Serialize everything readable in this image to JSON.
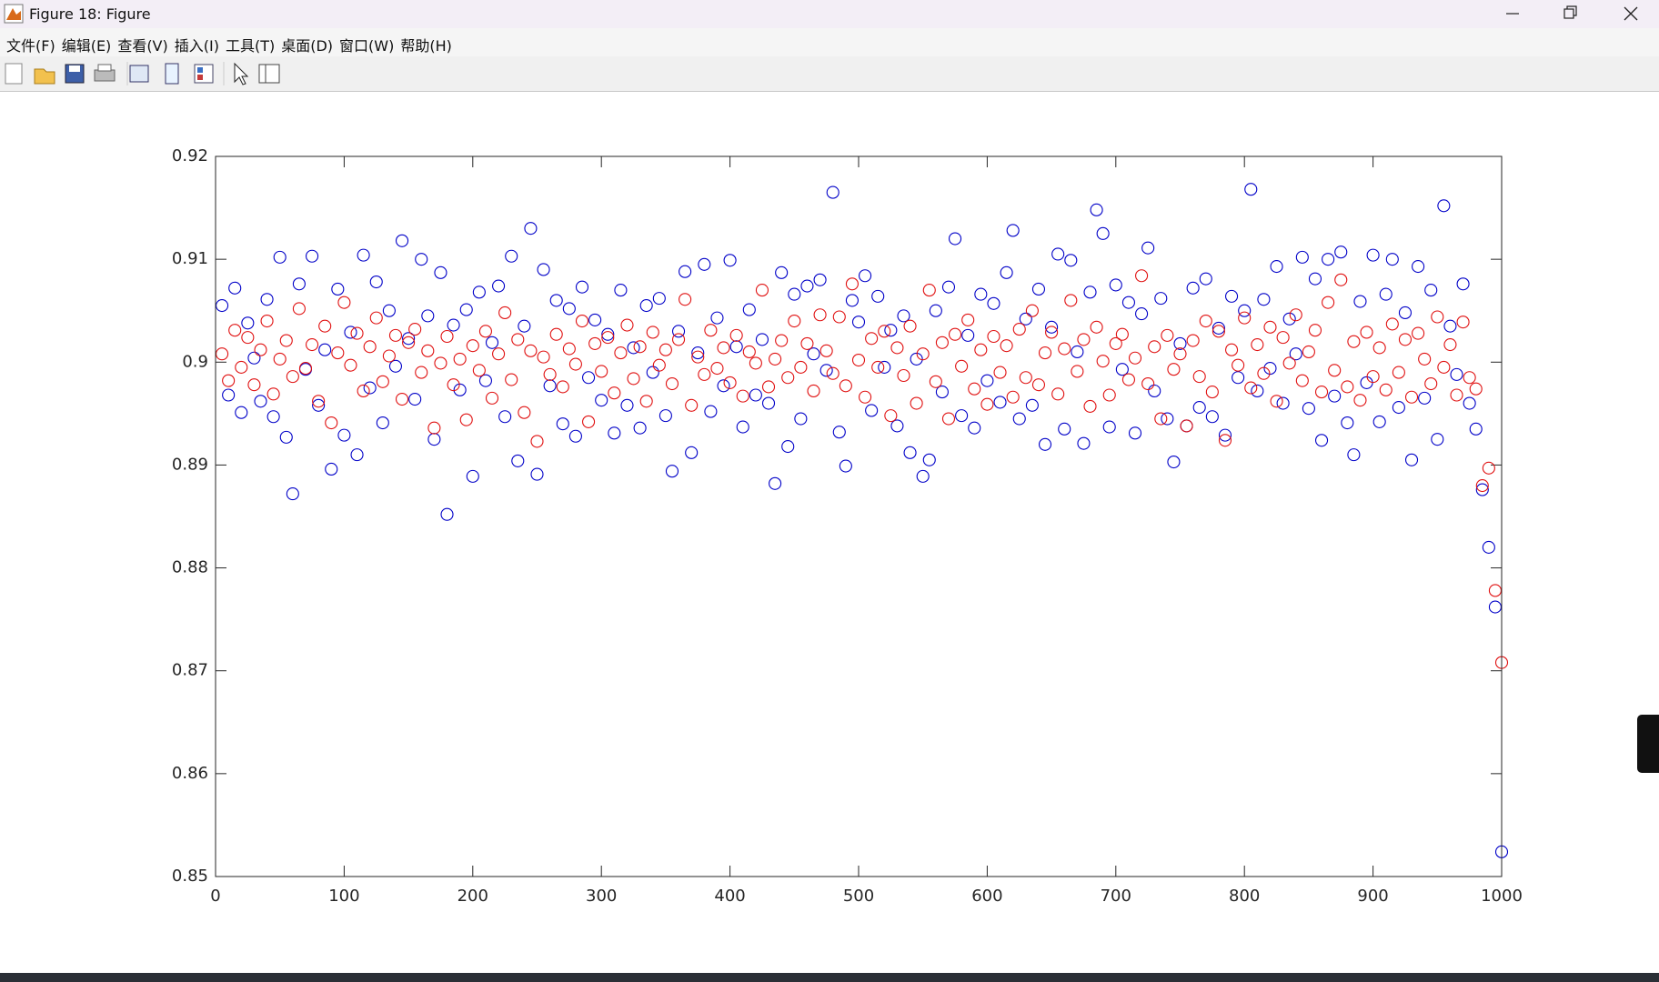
{
  "window": {
    "title": "Figure 18: Figure",
    "menu": [
      "文件(F)",
      "编辑(E)",
      "查看(V)",
      "插入(I)",
      "工具(T)",
      "桌面(D)",
      "窗口(W)",
      "帮助(H)"
    ]
  },
  "chart_data": {
    "type": "scatter",
    "x": [
      5,
      10,
      15,
      20,
      25,
      30,
      35,
      40,
      45,
      50,
      55,
      60,
      65,
      70,
      75,
      80,
      85,
      90,
      95,
      100,
      105,
      110,
      115,
      120,
      125,
      130,
      135,
      140,
      145,
      150,
      155,
      160,
      165,
      170,
      175,
      180,
      185,
      190,
      195,
      200,
      205,
      210,
      215,
      220,
      225,
      230,
      235,
      240,
      245,
      250,
      255,
      260,
      265,
      270,
      275,
      280,
      285,
      290,
      295,
      300,
      305,
      310,
      315,
      320,
      325,
      330,
      335,
      340,
      345,
      350,
      355,
      360,
      365,
      370,
      375,
      380,
      385,
      390,
      395,
      400,
      405,
      410,
      415,
      420,
      425,
      430,
      435,
      440,
      445,
      450,
      455,
      460,
      465,
      470,
      475,
      480,
      485,
      490,
      495,
      500,
      505,
      510,
      515,
      520,
      525,
      530,
      535,
      540,
      545,
      550,
      555,
      560,
      565,
      570,
      575,
      580,
      585,
      590,
      595,
      600,
      605,
      610,
      615,
      620,
      625,
      630,
      635,
      640,
      645,
      650,
      655,
      660,
      665,
      670,
      675,
      680,
      685,
      690,
      695,
      700,
      705,
      710,
      715,
      720,
      725,
      730,
      735,
      740,
      745,
      750,
      755,
      760,
      765,
      770,
      775,
      780,
      785,
      790,
      795,
      800,
      805,
      810,
      815,
      820,
      825,
      830,
      835,
      840,
      845,
      850,
      855,
      860,
      865,
      870,
      875,
      880,
      885,
      890,
      895,
      900,
      905,
      910,
      915,
      920,
      925,
      930,
      935,
      940,
      945,
      950,
      955,
      960,
      965,
      970,
      975,
      980,
      985,
      990,
      995,
      1000
    ],
    "series": [
      {
        "color": "#0000c8",
        "values": [
          0.9055,
          0.8968,
          0.9072,
          0.8951,
          0.9038,
          0.9004,
          0.8962,
          0.9061,
          0.8947,
          0.9102,
          0.8927,
          0.8872,
          0.9076,
          0.8993,
          0.9103,
          0.8958,
          0.9012,
          0.8896,
          0.9071,
          0.8929,
          0.9029,
          0.891,
          0.9104,
          0.8975,
          0.9078,
          0.8941,
          0.905,
          0.8996,
          0.9118,
          0.9023,
          0.8964,
          0.91,
          0.9045,
          0.8925,
          0.9087,
          0.8852,
          0.9036,
          0.8973,
          0.9051,
          0.8889,
          0.9068,
          0.8982,
          0.9019,
          0.9074,
          0.8947,
          0.9103,
          0.8904,
          0.9035,
          0.913,
          0.8891,
          0.909,
          0.8977,
          0.906,
          0.894,
          0.9052,
          0.8928,
          0.9073,
          0.8985,
          0.9041,
          0.8963,
          0.9027,
          0.8931,
          0.907,
          0.8958,
          0.9014,
          0.8936,
          0.9055,
          0.899,
          0.9062,
          0.8948,
          0.8894,
          0.903,
          0.9088,
          0.8912,
          0.9009,
          0.9095,
          0.8952,
          0.9043,
          0.8977,
          0.9099,
          0.9015,
          0.8937,
          0.9051,
          0.8968,
          0.9022,
          0.896,
          0.8882,
          0.9087,
          0.8918,
          0.9066,
          0.8945,
          0.9074,
          0.9008,
          0.908,
          0.8992,
          0.9165,
          0.8932,
          0.8899,
          0.906,
          0.9039,
          0.9084,
          0.8953,
          0.9064,
          0.8995,
          0.9031,
          0.8938,
          0.9045,
          0.8912,
          0.9003,
          0.8889,
          0.8905,
          0.905,
          0.8971,
          0.9073,
          0.912,
          0.8948,
          0.9026,
          0.8936,
          0.9066,
          0.8982,
          0.9057,
          0.8961,
          0.9087,
          0.9128,
          0.8945,
          0.9042,
          0.8958,
          0.9071,
          0.892,
          0.9034,
          0.9105,
          0.8935,
          0.9099,
          0.901,
          0.8921,
          0.9068,
          0.9148,
          0.9125,
          0.8937,
          0.9075,
          0.8993,
          0.9058,
          0.8931,
          0.9047,
          0.9111,
          0.8972,
          0.9062,
          0.8945,
          0.8903,
          0.9018,
          0.8938,
          0.9072,
          0.8956,
          0.9081,
          0.8947,
          0.9033,
          0.8929,
          0.9064,
          0.8985,
          0.905,
          0.9168,
          0.8972,
          0.9061,
          0.8994,
          0.9093,
          0.896,
          0.9042,
          0.9008,
          0.9102,
          0.8955,
          0.9081,
          0.8924,
          0.91,
          0.8967,
          0.9107,
          0.8941,
          0.891,
          0.9059,
          0.898,
          0.9104,
          0.8942,
          0.9066,
          0.91,
          0.8956,
          0.9048,
          0.8905,
          0.9093,
          0.8965,
          0.907,
          0.8925,
          0.9152,
          0.9035,
          0.8988,
          0.9076,
          0.896,
          0.8935,
          0.8876,
          0.882,
          0.8762,
          0.8524
        ]
      },
      {
        "color": "#e01010",
        "values": [
          0.9008,
          0.8982,
          0.9031,
          0.8995,
          0.9024,
          0.8978,
          0.9012,
          0.904,
          0.8969,
          0.9003,
          0.9021,
          0.8986,
          0.9052,
          0.8994,
          0.9017,
          0.8962,
          0.9035,
          0.8941,
          0.9009,
          0.9058,
          0.8997,
          0.9028,
          0.8972,
          0.9015,
          0.9043,
          0.8981,
          0.9006,
          0.9026,
          0.8964,
          0.9019,
          0.9032,
          0.899,
          0.9011,
          0.8936,
          0.8999,
          0.9025,
          0.8978,
          0.9003,
          0.8944,
          0.9016,
          0.8992,
          0.903,
          0.8965,
          0.9008,
          0.9048,
          0.8983,
          0.9022,
          0.8951,
          0.9011,
          0.8923,
          0.9005,
          0.8988,
          0.9027,
          0.8976,
          0.9013,
          0.8998,
          0.904,
          0.8942,
          0.9018,
          0.8991,
          0.9024,
          0.897,
          0.9009,
          0.9036,
          0.8984,
          0.9015,
          0.8962,
          0.9029,
          0.8997,
          0.9012,
          0.8979,
          0.9022,
          0.9061,
          0.8958,
          0.9005,
          0.8988,
          0.9031,
          0.8994,
          0.9014,
          0.898,
          0.9026,
          0.8967,
          0.901,
          0.8999,
          0.907,
          0.8976,
          0.9003,
          0.9021,
          0.8985,
          0.904,
          0.8995,
          0.9018,
          0.8972,
          0.9046,
          0.9011,
          0.8989,
          0.9044,
          0.8977,
          0.9076,
          0.9002,
          0.8966,
          0.9023,
          0.8995,
          0.903,
          0.8948,
          0.9014,
          0.8987,
          0.9035,
          0.896,
          0.9008,
          0.907,
          0.8981,
          0.9019,
          0.8945,
          0.9027,
          0.8996,
          0.9041,
          0.8974,
          0.9012,
          0.8959,
          0.9025,
          0.899,
          0.9016,
          0.8966,
          0.9032,
          0.8985,
          0.905,
          0.8978,
          0.9009,
          0.9029,
          0.8969,
          0.9013,
          0.906,
          0.8991,
          0.9022,
          0.8957,
          0.9034,
          0.9001,
          0.8968,
          0.9018,
          0.9027,
          0.8983,
          0.9004,
          0.9084,
          0.8979,
          0.9015,
          0.8945,
          0.9026,
          0.8993,
          0.9008,
          0.8938,
          0.9021,
          0.8986,
          0.904,
          0.8971,
          0.903,
          0.8924,
          0.9012,
          0.8997,
          0.9043,
          0.8975,
          0.9017,
          0.8989,
          0.9034,
          0.8962,
          0.9024,
          0.8999,
          0.9046,
          0.8982,
          0.901,
          0.9031,
          0.8971,
          0.9058,
          0.8992,
          0.908,
          0.8976,
          0.902,
          0.8963,
          0.9029,
          0.8986,
          0.9014,
          0.8973,
          0.9037,
          0.899,
          0.9022,
          0.8966,
          0.9028,
          0.9003,
          0.8979,
          0.9044,
          0.8995,
          0.9017,
          0.8968,
          0.9039,
          0.8985,
          0.8974,
          0.888,
          0.8897,
          0.8778,
          0.8708
        ]
      }
    ],
    "xlim": [
      0,
      1000
    ],
    "ylim": [
      0.85,
      0.92
    ],
    "xticks": [
      0,
      100,
      200,
      300,
      400,
      500,
      600,
      700,
      800,
      900,
      1000
    ],
    "yticks": [
      0.85,
      0.86,
      0.87,
      0.88,
      0.89,
      0.9,
      0.91,
      0.92
    ],
    "grid": false,
    "box": true
  }
}
